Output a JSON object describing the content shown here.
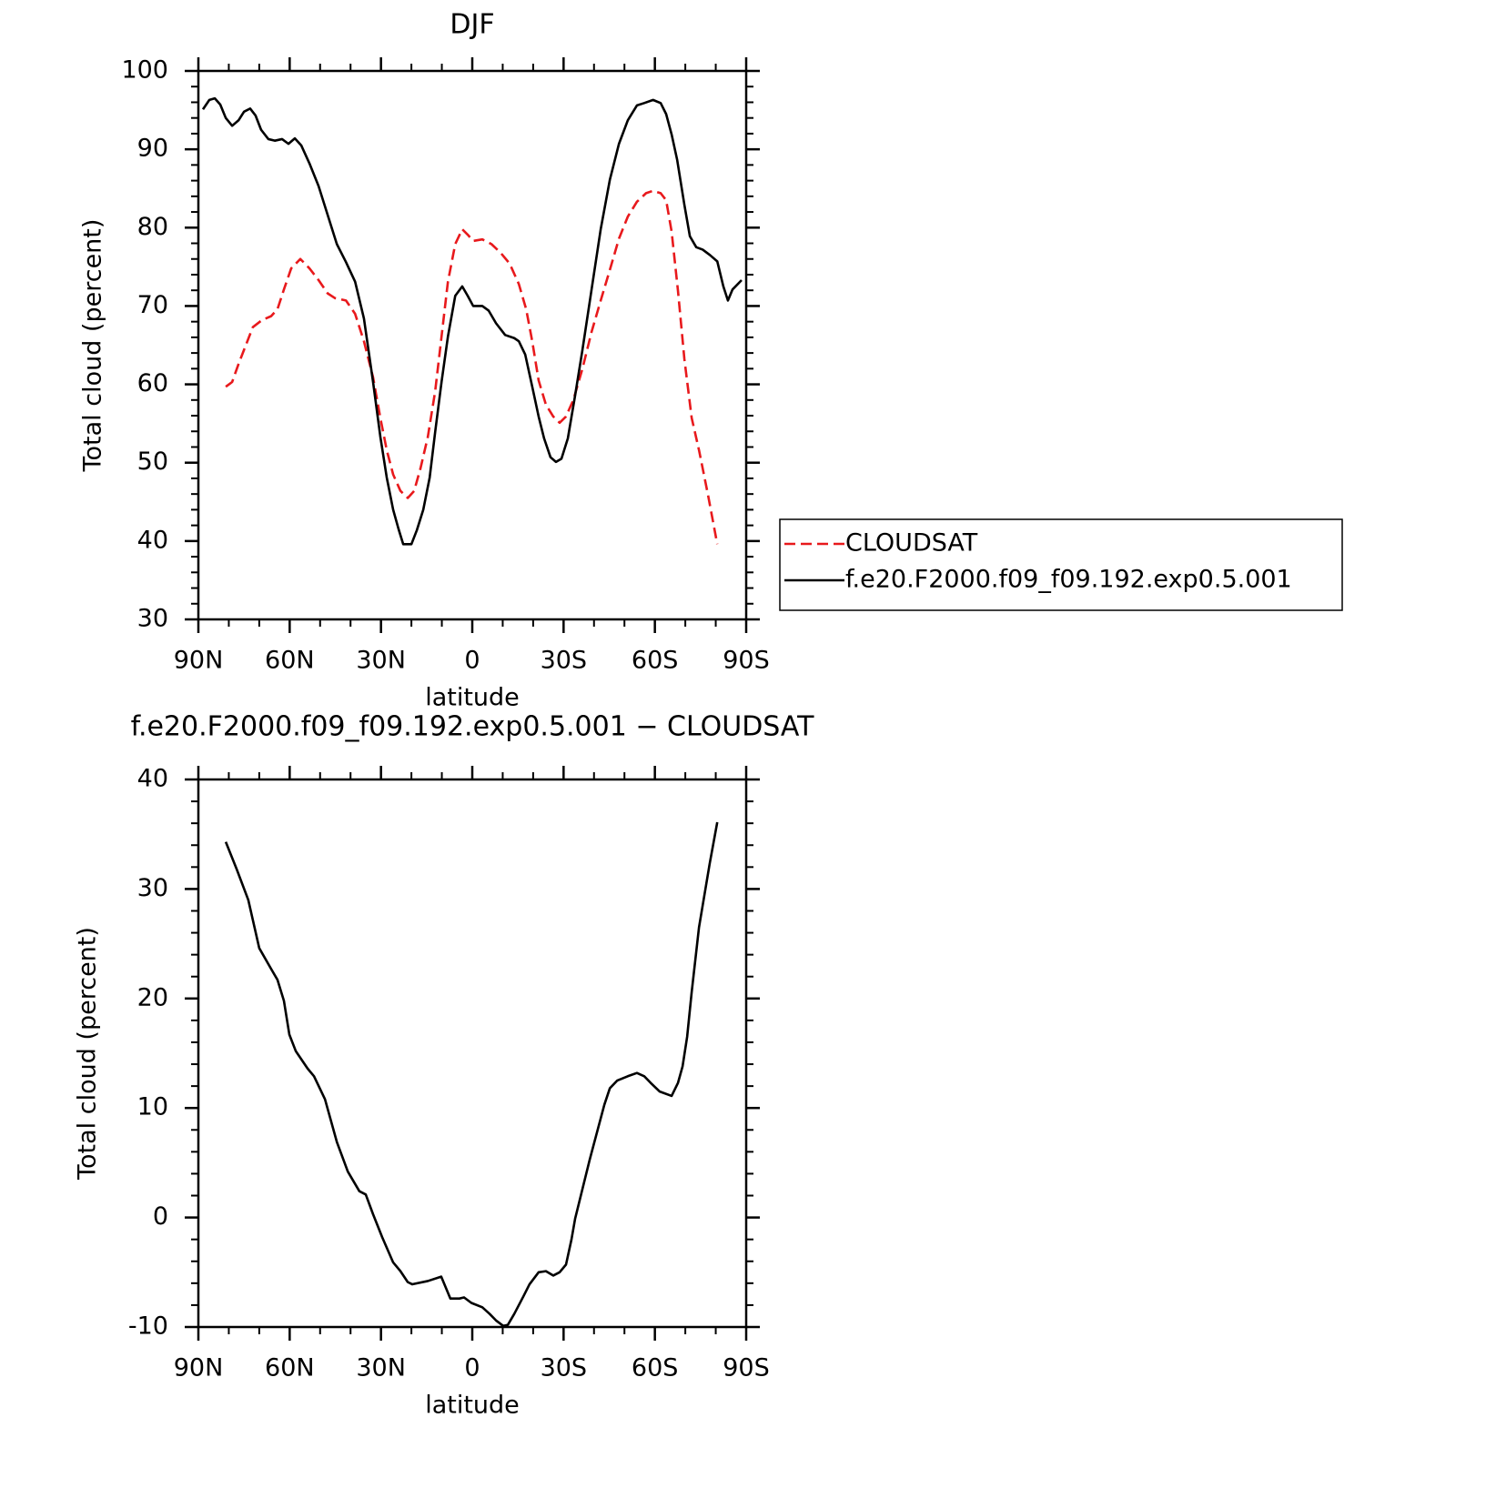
{
  "chart_data": [
    {
      "type": "line",
      "title": "DJF",
      "xlabel": "latitude",
      "ylabel": "Total cloud (percent)",
      "xlim": [
        90,
        -90
      ],
      "xticks": [
        {
          "value": 90,
          "label": "90N"
        },
        {
          "value": 60,
          "label": "60N"
        },
        {
          "value": 30,
          "label": "30N"
        },
        0,
        {
          "value": -30,
          "label": "30S"
        },
        {
          "value": -60,
          "label": "60S"
        },
        {
          "value": -90,
          "label": "90S"
        }
      ],
      "ylim": [
        30,
        100
      ],
      "yticks": [
        30,
        40,
        50,
        60,
        70,
        80,
        90,
        100
      ],
      "legend": "right",
      "series": [
        {
          "name": "CLOUDSAT",
          "color": "#e8191c",
          "linestyle": "dashed",
          "x": [
            81.0,
            78.9,
            76.8,
            74.5,
            72.1,
            69.1,
            66.1,
            64.0,
            61.9,
            59.5,
            56.5,
            53.5,
            50.5,
            47.5,
            45.1,
            41.5,
            38.5,
            35.6,
            32.6,
            30.2,
            28.1,
            26.0,
            23.6,
            21.2,
            19.1,
            17.0,
            14.6,
            12.2,
            10.1,
            8.0,
            5.6,
            3.3,
            1.5,
            -0.3,
            -3.3,
            -6.3,
            -9.3,
            -12.3,
            -15.3,
            -17.7,
            -19.7,
            -21.8,
            -24.2,
            -26.6,
            -28.7,
            -30.8,
            -33.2,
            -36.2,
            -39.2,
            -42.2,
            -45.2,
            -48.2,
            -51.1,
            -54.1,
            -57.1,
            -59.4,
            -61.9,
            -63.7,
            -65.5,
            -67.6,
            -69.7,
            -72.1,
            -74.5,
            -77.5,
            -80.5
          ],
          "values": [
            59.7,
            60.3,
            62.6,
            64.9,
            67.3,
            68.2,
            68.7,
            69.6,
            72.1,
            74.8,
            76.0,
            74.8,
            73.3,
            71.6,
            71.0,
            70.7,
            69.0,
            65.5,
            60.9,
            55.7,
            51.6,
            48.5,
            46.4,
            45.5,
            46.4,
            49.3,
            53.3,
            59.1,
            66.1,
            73.1,
            77.9,
            79.8,
            79.1,
            78.3,
            78.5,
            77.9,
            76.8,
            75.4,
            72.8,
            69.6,
            65.5,
            60.5,
            57.4,
            55.9,
            55.1,
            55.9,
            58.0,
            62.0,
            66.7,
            70.7,
            74.6,
            78.6,
            81.4,
            83.3,
            84.4,
            84.7,
            84.4,
            83.5,
            79.5,
            71.9,
            63.2,
            55.7,
            51.6,
            45.8,
            39.6
          ]
        },
        {
          "name": "f.e20.F2000.f09_f09.192.exp0.5.001",
          "color": "#000000",
          "linestyle": "solid",
          "x": [
            88.5,
            86.4,
            84.6,
            82.8,
            81.0,
            78.9,
            76.8,
            75.0,
            73.0,
            71.2,
            69.4,
            67.0,
            64.9,
            62.5,
            60.4,
            58.3,
            56.2,
            53.5,
            50.5,
            47.5,
            44.5,
            41.5,
            38.5,
            35.6,
            32.6,
            30.2,
            28.1,
            26.0,
            24.2,
            22.7,
            20.0,
            18.2,
            16.1,
            14.0,
            12.2,
            10.1,
            8.0,
            5.6,
            3.3,
            1.5,
            -0.3,
            -3.3,
            -5.4,
            -7.8,
            -10.8,
            -13.8,
            -15.3,
            -17.4,
            -19.7,
            -21.8,
            -23.6,
            -25.7,
            -27.5,
            -29.3,
            -31.4,
            -33.8,
            -36.2,
            -39.2,
            -42.2,
            -45.2,
            -48.2,
            -51.1,
            -54.1,
            -56.5,
            -59.4,
            -61.9,
            -63.7,
            -65.5,
            -67.3,
            -69.7,
            -71.5,
            -73.6,
            -75.7,
            -78.1,
            -80.5,
            -82.5,
            -84.0,
            -85.5,
            -88.5
          ],
          "values": [
            95.1,
            96.3,
            96.5,
            95.7,
            94.0,
            93.0,
            93.7,
            94.8,
            95.2,
            94.3,
            92.5,
            91.3,
            91.1,
            91.3,
            90.7,
            91.4,
            90.5,
            88.2,
            85.3,
            81.6,
            77.9,
            75.6,
            73.1,
            68.4,
            60.3,
            53.3,
            48.1,
            44.0,
            41.5,
            39.6,
            39.6,
            41.4,
            44.0,
            48.1,
            53.9,
            60.3,
            66.1,
            71.3,
            72.5,
            71.3,
            70.0,
            70.0,
            69.4,
            67.8,
            66.3,
            65.9,
            65.5,
            63.8,
            59.7,
            55.9,
            53.1,
            50.7,
            50.1,
            50.5,
            53.1,
            58.6,
            64.4,
            72.1,
            79.8,
            86.1,
            90.7,
            93.7,
            95.6,
            95.9,
            96.3,
            95.9,
            94.5,
            91.9,
            88.7,
            82.9,
            78.9,
            77.5,
            77.2,
            76.5,
            75.7,
            72.5,
            70.7,
            72.1,
            73.3
          ]
        }
      ]
    },
    {
      "type": "line",
      "title": "f.e20.F2000.f09_f09.192.exp0.5.001 − CLOUDSAT",
      "xlabel": "latitude",
      "ylabel": "Total cloud (percent)",
      "xlim": [
        90,
        -90
      ],
      "xticks": [
        {
          "value": 90,
          "label": "90N"
        },
        {
          "value": 60,
          "label": "60N"
        },
        {
          "value": 30,
          "label": "30N"
        },
        0,
        {
          "value": -30,
          "label": "30S"
        },
        {
          "value": -60,
          "label": "60S"
        },
        {
          "value": -90,
          "label": "90S"
        }
      ],
      "ylim": [
        -10,
        40
      ],
      "yticks": [
        -10,
        0,
        10,
        20,
        30,
        40
      ],
      "series": [
        {
          "color": "#000000",
          "linestyle": "solid",
          "x": [
            81.0,
            77.4,
            73.6,
            70.0,
            66.1,
            64.0,
            61.9,
            60.1,
            58.0,
            54.1,
            52.0,
            48.4,
            44.5,
            40.9,
            37.1,
            35.0,
            32.6,
            29.6,
            26.0,
            23.6,
            21.2,
            19.7,
            14.6,
            10.2,
            7.2,
            4.2,
            2.7,
            0.3,
            -3.3,
            -5.7,
            -7.8,
            -10.2,
            -11.7,
            -13.8,
            -16.8,
            -18.8,
            -21.8,
            -24.2,
            -26.6,
            -28.7,
            -30.8,
            -32.6,
            -33.8,
            -38.6,
            -43.4,
            -45.2,
            -47.6,
            -51.1,
            -54.1,
            -56.5,
            -58.6,
            -61.6,
            -65.5,
            -67.6,
            -69.1,
            -70.6,
            -72.1,
            -74.5,
            -78.0,
            -80.5
          ],
          "values": [
            34.3,
            31.8,
            29.0,
            24.6,
            22.7,
            21.7,
            19.8,
            16.7,
            15.2,
            13.6,
            12.9,
            10.8,
            6.9,
            4.2,
            2.4,
            2.1,
            0.3,
            -1.8,
            -4.1,
            -4.9,
            -5.9,
            -6.1,
            -5.8,
            -5.4,
            -7.4,
            -7.4,
            -7.3,
            -7.8,
            -8.2,
            -8.8,
            -9.4,
            -9.9,
            -9.8,
            -8.8,
            -7.2,
            -6.1,
            -5.0,
            -4.9,
            -5.3,
            -5.0,
            -4.3,
            -2.0,
            -0.1,
            5.3,
            10.3,
            11.8,
            12.5,
            12.9,
            13.2,
            12.9,
            12.3,
            11.5,
            11.1,
            12.3,
            13.8,
            16.5,
            20.6,
            26.5,
            32.3,
            36.1
          ]
        }
      ]
    }
  ]
}
